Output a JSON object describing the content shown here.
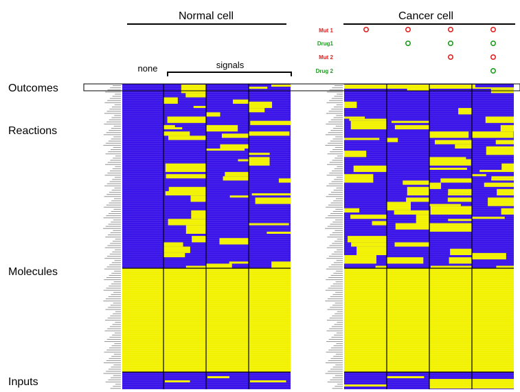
{
  "headers": {
    "normal": "Normal cell",
    "cancer": "Cancer cell",
    "none": "none",
    "signals": "signals"
  },
  "conditions": [
    {
      "label": "Mut 1",
      "color": "#e02020",
      "marks": [
        true,
        true,
        true,
        true
      ]
    },
    {
      "label": "Drug1",
      "color": "#1f9a1f",
      "marks": [
        false,
        true,
        true,
        true
      ]
    },
    {
      "label": "Mut 2",
      "color": "#e02020",
      "marks": [
        false,
        false,
        true,
        true
      ]
    },
    {
      "label": "Drug 2",
      "color": "#1f9a1f",
      "marks": [
        false,
        false,
        false,
        true
      ]
    }
  ],
  "row_groups": {
    "outcomes": "Outcomes",
    "reactions": "Reactions",
    "molecules": "Molecules",
    "inputs": "Inputs"
  },
  "colors": {
    "on": "#f2f200",
    "off": "#3a13e8",
    "divider": "#000000"
  }
}
